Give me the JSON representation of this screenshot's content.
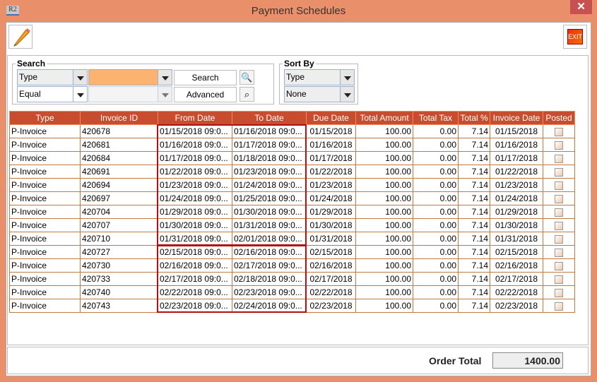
{
  "window": {
    "title": "Payment Schedules",
    "app_icon": "R2",
    "close": "✕"
  },
  "toolbar": {
    "edit_icon": "pencil-icon",
    "exit_label": "EXIT"
  },
  "search": {
    "legend": "Search",
    "field": "Type",
    "operator": "Equal",
    "value": "",
    "search_label": "Search",
    "advanced_label": "Advanced"
  },
  "sort": {
    "legend": "Sort By",
    "primary": "Type",
    "secondary": "None"
  },
  "colors": {
    "accent": "#C84C2E",
    "window": "#E9906A",
    "highlight": "#B01010",
    "input_active": "#FBB36F"
  },
  "table": {
    "columns": [
      "Type",
      "Invoice ID",
      "From Date",
      "To Date",
      "Due Date",
      "Total Amount",
      "Total Tax",
      "Total %",
      "Invoice Date",
      "Posted"
    ],
    "rows": [
      [
        "P-Invoice",
        "420678",
        "01/15/2018 09:0...",
        "01/16/2018 09:0...",
        "01/15/2018",
        "100.00",
        "0.00",
        "7.14",
        "01/15/2018",
        false
      ],
      [
        "P-Invoice",
        "420681",
        "01/16/2018 09:0...",
        "01/17/2018 09:0...",
        "01/16/2018",
        "100.00",
        "0.00",
        "7.14",
        "01/16/2018",
        false
      ],
      [
        "P-Invoice",
        "420684",
        "01/17/2018 09:0...",
        "01/18/2018 09:0...",
        "01/17/2018",
        "100.00",
        "0.00",
        "7.14",
        "01/17/2018",
        false
      ],
      [
        "P-Invoice",
        "420691",
        "01/22/2018 09:0...",
        "01/23/2018 09:0...",
        "01/22/2018",
        "100.00",
        "0.00",
        "7.14",
        "01/22/2018",
        false
      ],
      [
        "P-Invoice",
        "420694",
        "01/23/2018 09:0...",
        "01/24/2018 09:0...",
        "01/23/2018",
        "100.00",
        "0.00",
        "7.14",
        "01/23/2018",
        false
      ],
      [
        "P-Invoice",
        "420697",
        "01/24/2018 09:0...",
        "01/25/2018 09:0...",
        "01/24/2018",
        "100.00",
        "0.00",
        "7.14",
        "01/24/2018",
        false
      ],
      [
        "P-Invoice",
        "420704",
        "01/29/2018 09:0...",
        "01/30/2018 09:0...",
        "01/29/2018",
        "100.00",
        "0.00",
        "7.14",
        "01/29/2018",
        false
      ],
      [
        "P-Invoice",
        "420707",
        "01/30/2018 09:0...",
        "01/31/2018 09:0...",
        "01/30/2018",
        "100.00",
        "0.00",
        "7.14",
        "01/30/2018",
        false
      ],
      [
        "P-Invoice",
        "420710",
        "01/31/2018 09:0...",
        "02/01/2018 09:0...",
        "01/31/2018",
        "100.00",
        "0.00",
        "7.14",
        "01/31/2018",
        false
      ],
      [
        "P-Invoice",
        "420727",
        "02/15/2018 09:0...",
        "02/16/2018 09:0...",
        "02/15/2018",
        "100.00",
        "0.00",
        "7.14",
        "02/15/2018",
        false
      ],
      [
        "P-Invoice",
        "420730",
        "02/16/2018 09:0...",
        "02/17/2018 09:0...",
        "02/16/2018",
        "100.00",
        "0.00",
        "7.14",
        "02/16/2018",
        false
      ],
      [
        "P-Invoice",
        "420733",
        "02/17/2018 09:0...",
        "02/18/2018 09:0...",
        "02/17/2018",
        "100.00",
        "0.00",
        "7.14",
        "02/17/2018",
        false
      ],
      [
        "P-Invoice",
        "420740",
        "02/22/2018 09:0...",
        "02/23/2018 09:0...",
        "02/22/2018",
        "100.00",
        "0.00",
        "7.14",
        "02/22/2018",
        false
      ],
      [
        "P-Invoice",
        "420743",
        "02/23/2018 09:0...",
        "02/24/2018 09:0...",
        "02/23/2018",
        "100.00",
        "0.00",
        "7.14",
        "02/23/2018",
        false
      ]
    ]
  },
  "footer": {
    "order_total_label": "Order Total",
    "order_total": "1400.00"
  }
}
